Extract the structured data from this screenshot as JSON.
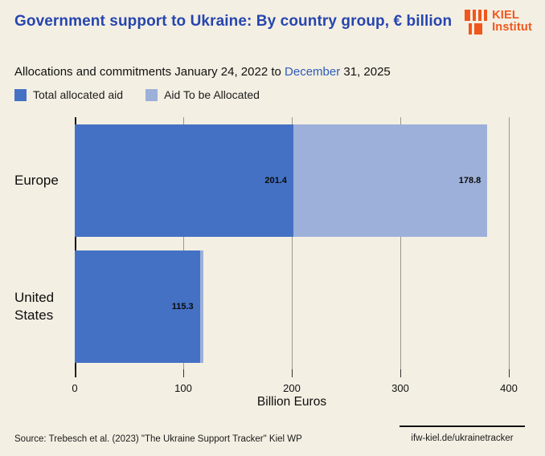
{
  "header": {
    "title": "Government support to Ukraine: By country group, € billion",
    "subtitle_prefix": "Allocations and commitments January 24, 2022 to ",
    "subtitle_highlight": "December",
    "subtitle_suffix": " 31, 2025",
    "logo_line1": "KIEL",
    "logo_line2": "Institut"
  },
  "legend": [
    {
      "label": "Total allocated aid",
      "color": "#4471c4"
    },
    {
      "label": "Aid To be Allocated",
      "color": "#9db0d9"
    }
  ],
  "chart_data": {
    "type": "bar",
    "orientation": "horizontal",
    "stacked": true,
    "title": "Government support to Ukraine: By country group, € billion",
    "subtitle": "Allocations and commitments January 24, 2022 to December 31, 2025",
    "categories": [
      "Europe",
      "United States"
    ],
    "series": [
      {
        "name": "Total allocated aid",
        "color": "#4471c4",
        "values": [
          201.4,
          115.3
        ],
        "labels": [
          "201.4",
          "115.3"
        ]
      },
      {
        "name": "Aid To be Allocated",
        "color": "#9db0d9",
        "values": [
          178.8,
          3
        ],
        "labels": [
          "178.8",
          ""
        ]
      }
    ],
    "xlabel": "Billion Euros",
    "x_ticks": [
      0,
      100,
      200,
      300,
      400
    ],
    "x_tick_labels": [
      "0",
      "100",
      "200",
      "300",
      "400"
    ],
    "xlim": [
      0,
      420
    ],
    "grid": "vertical",
    "legend_position": "top"
  },
  "footer": {
    "source": "Source: Trebesch et al. (2023) \"The Ukraine Support Tracker\" Kiel WP",
    "link": "ifw-kiel.de/ukrainetracker"
  },
  "colors": {
    "background": "#f4efe3",
    "title_blue": "#2646ae",
    "highlight_blue": "#2d5cb5",
    "bar_dark_blue": "#4471c4",
    "bar_light_blue": "#9db0d9",
    "logo_orange": "#f0571c",
    "gridline_gray": "#9a988c"
  }
}
